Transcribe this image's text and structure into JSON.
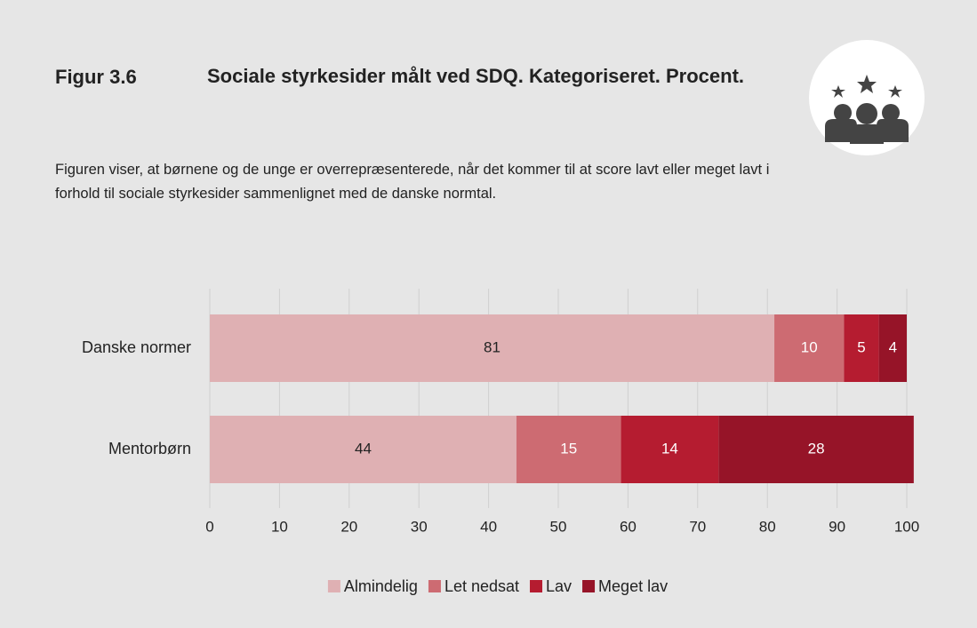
{
  "figure_label": "Figur 3.6",
  "chart_data": {
    "type": "stacked_barh",
    "title": "Sociale styrkesider målt ved SDQ. Kategoriseret. Procent.",
    "subtitle": "Figuren viser, at børnene og de unge er overrepræsenterede, når det kommer til at score lavt eller meget lavt i forhold til sociale styrkesider sammenlignet med de danske normtal.",
    "categories": [
      "Danske normer",
      "Mentorbørn"
    ],
    "series": [
      {
        "name": "Almindelig",
        "color": "#dfb0b3",
        "values": [
          81,
          44
        ]
      },
      {
        "name": "Let nedsat",
        "color": "#cd6b72",
        "values": [
          10,
          15
        ]
      },
      {
        "name": "Lav",
        "color": "#b51c30",
        "values": [
          5,
          14
        ]
      },
      {
        "name": "Meget lav",
        "color": "#961428",
        "values": [
          4,
          28
        ]
      }
    ],
    "xlim": [
      0,
      100
    ],
    "xticks": [
      0,
      10,
      20,
      30,
      40,
      50,
      60,
      70,
      80,
      90,
      100
    ],
    "grid": true,
    "legend": "bottom"
  }
}
